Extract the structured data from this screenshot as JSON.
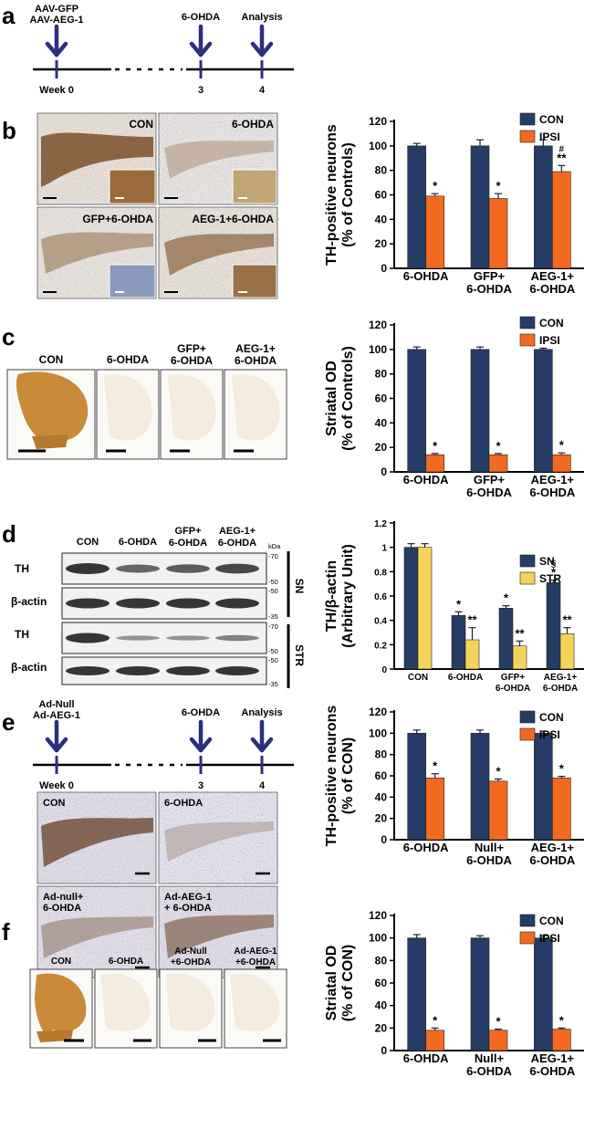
{
  "colors": {
    "navy": "#253c64",
    "orange": "#f26a22",
    "yellow": "#f5d35a",
    "arrow": "#2b2f7e",
    "blot_band": "#2a2a2a",
    "stain_brown": "#7a4a1f",
    "striatum_orange": "#c98b3a"
  },
  "panel_labels": [
    "a",
    "b",
    "c",
    "d",
    "e",
    "f"
  ],
  "timeline_a": {
    "events": [
      {
        "label_lines": [
          "AAV-GFP",
          "AAV-AEG-1"
        ],
        "week": "Week 0"
      },
      {
        "label_lines": [
          "6-OHDA"
        ],
        "week": "3"
      },
      {
        "label_lines": [
          "Analysis"
        ],
        "week": "4"
      }
    ]
  },
  "timeline_e": {
    "events": [
      {
        "label_lines": [
          "Ad-Null",
          "Ad-AEG-1"
        ],
        "week": "Week 0"
      },
      {
        "label_lines": [
          "6-OHDA"
        ],
        "week": "3"
      },
      {
        "label_lines": [
          "Analysis"
        ],
        "week": "4"
      }
    ]
  },
  "micrographs_b": [
    "CON",
    "6-OHDA",
    "GFP+6-OHDA",
    "AEG-1+6-OHDA"
  ],
  "micrographs_c": [
    [
      "CON"
    ],
    [
      "6-OHDA"
    ],
    [
      "GFP+",
      "6-OHDA"
    ],
    [
      "AEG-1+",
      "6-OHDA"
    ]
  ],
  "micrographs_e": [
    [
      "CON"
    ],
    [
      "6-OHDA"
    ],
    [
      "Ad-null+",
      "6-OHDA"
    ],
    [
      "Ad-AEG-1",
      "+ 6-OHDA"
    ]
  ],
  "micrographs_f": [
    [
      "CON"
    ],
    [
      "6-OHDA"
    ],
    [
      "Ad-Null",
      "+6-OHDA"
    ],
    [
      "Ad-AEG-1",
      "+6-OHDA"
    ]
  ],
  "blot_d": {
    "lanes": [
      [
        "CON"
      ],
      [
        "6-OHDA"
      ],
      [
        "GFP+",
        "6-OHDA"
      ],
      [
        "AEG-1+",
        "6-OHDA"
      ]
    ],
    "rows": [
      "TH",
      "β-actin",
      "TH",
      "β-actin"
    ],
    "kda_header": "kDa",
    "markers": [
      "-70",
      "-50",
      "-50",
      "-35",
      "-70",
      "-50",
      "-50",
      "-35"
    ],
    "regions": [
      "SN",
      "STR"
    ],
    "th_intensity_sn": [
      1.0,
      0.5,
      0.6,
      0.8
    ],
    "th_intensity_str": [
      1.0,
      0.2,
      0.2,
      0.35
    ]
  },
  "chart_data": [
    {
      "panel": "b",
      "type": "bar",
      "ylabel": [
        "TH-positive neurons",
        "(% of Controls)"
      ],
      "ylim": [
        0,
        120
      ],
      "yticks": [
        0,
        20,
        40,
        60,
        80,
        100,
        120
      ],
      "categories": [
        [
          "6-OHDA"
        ],
        [
          "GFP+",
          "6-OHDA"
        ],
        [
          "AEG-1+",
          "6-OHDA"
        ]
      ],
      "series": [
        {
          "name": "CON",
          "color": "#253c64",
          "values": [
            100,
            100,
            100
          ],
          "errors": [
            2,
            5,
            5
          ]
        },
        {
          "name": "IPSI",
          "color": "#f26a22",
          "values": [
            59,
            57,
            79
          ],
          "errors": [
            2,
            4,
            5
          ]
        }
      ],
      "annotations": [
        [
          "*"
        ],
        [
          "*"
        ],
        [
          "#",
          "**"
        ]
      ],
      "legend": "top-right"
    },
    {
      "panel": "c",
      "type": "bar",
      "ylabel": [
        "Striatal OD",
        "(% of Controls)"
      ],
      "ylim": [
        0,
        120
      ],
      "yticks": [
        0,
        20,
        40,
        60,
        80,
        100,
        120
      ],
      "categories": [
        [
          "6-OHDA"
        ],
        [
          "GFP+",
          "6-OHDA"
        ],
        [
          "AEG-1+",
          "6-OHDA"
        ]
      ],
      "series": [
        {
          "name": "CON",
          "color": "#253c64",
          "values": [
            100,
            100,
            100
          ],
          "errors": [
            2,
            2,
            1
          ]
        },
        {
          "name": "IPSI",
          "color": "#f26a22",
          "values": [
            14,
            14,
            14
          ],
          "errors": [
            1,
            1,
            1.5
          ]
        }
      ],
      "annotations": [
        [
          "*"
        ],
        [
          "*"
        ],
        [
          "*"
        ]
      ],
      "legend": "top-right"
    },
    {
      "panel": "d",
      "type": "bar",
      "ylabel": [
        "TH/β-actin",
        "(Arbitrary Unit)"
      ],
      "ylim": [
        0,
        1.2
      ],
      "yticks": [
        0,
        0.2,
        0.4,
        0.6,
        0.8,
        1,
        1.2
      ],
      "categories": [
        [
          "CON"
        ],
        [
          "6-OHDA"
        ],
        [
          "GFP+",
          "6-OHDA"
        ],
        [
          "AEG-1+",
          "6-OHDA"
        ]
      ],
      "series": [
        {
          "name": "SN",
          "color": "#253c64",
          "values": [
            1.0,
            0.44,
            0.5,
            0.71
          ],
          "errors": [
            0.03,
            0.03,
            0.02,
            0.02
          ]
        },
        {
          "name": "STR",
          "color": "#f5d35a",
          "values": [
            1.0,
            0.24,
            0.19,
            0.29
          ],
          "errors": [
            0.03,
            0.1,
            0.04,
            0.05
          ]
        }
      ],
      "annotations": [
        [
          [],
          []
        ],
        [
          [
            "*"
          ],
          [
            "**"
          ]
        ],
        [
          [
            "*"
          ],
          [
            "**"
          ]
        ],
        [
          [
            "§",
            "*"
          ],
          [
            "**"
          ]
        ]
      ],
      "legend": "top-right"
    },
    {
      "panel": "e",
      "type": "bar",
      "ylabel": [
        "TH-positive neurons",
        "(% of CON)"
      ],
      "ylim": [
        0,
        120
      ],
      "yticks": [
        0,
        20,
        40,
        60,
        80,
        100,
        120
      ],
      "categories": [
        [
          "6-OHDA"
        ],
        [
          "Null+",
          "6-OHDA"
        ],
        [
          "AEG-1+",
          "6-OHDA"
        ]
      ],
      "series": [
        {
          "name": "CON",
          "color": "#253c64",
          "values": [
            100,
            100,
            100
          ],
          "errors": [
            3,
            3,
            2
          ]
        },
        {
          "name": "IPSI",
          "color": "#f26a22",
          "values": [
            58,
            55,
            58
          ],
          "errors": [
            4,
            2,
            1.5
          ]
        }
      ],
      "annotations": [
        [
          "*"
        ],
        [
          "*"
        ],
        [
          "*"
        ]
      ],
      "legend": "top-right"
    },
    {
      "panel": "f",
      "type": "bar",
      "ylabel": [
        "Striatal OD",
        "(% of CON)"
      ],
      "ylim": [
        0,
        120
      ],
      "yticks": [
        0,
        20,
        40,
        60,
        80,
        100,
        120
      ],
      "categories": [
        [
          "6-OHDA"
        ],
        [
          "Null+",
          "6-OHDA"
        ],
        [
          "AEG-1+",
          "6-OHDA"
        ]
      ],
      "series": [
        {
          "name": "CON",
          "color": "#253c64",
          "values": [
            100,
            100,
            100
          ],
          "errors": [
            3,
            2,
            2
          ]
        },
        {
          "name": "IPSI",
          "color": "#f26a22",
          "values": [
            18,
            18,
            19
          ],
          "errors": [
            2,
            1,
            1
          ]
        }
      ],
      "annotations": [
        [
          "*"
        ],
        [
          "*"
        ],
        [
          "*"
        ]
      ],
      "legend": "top-right"
    }
  ]
}
